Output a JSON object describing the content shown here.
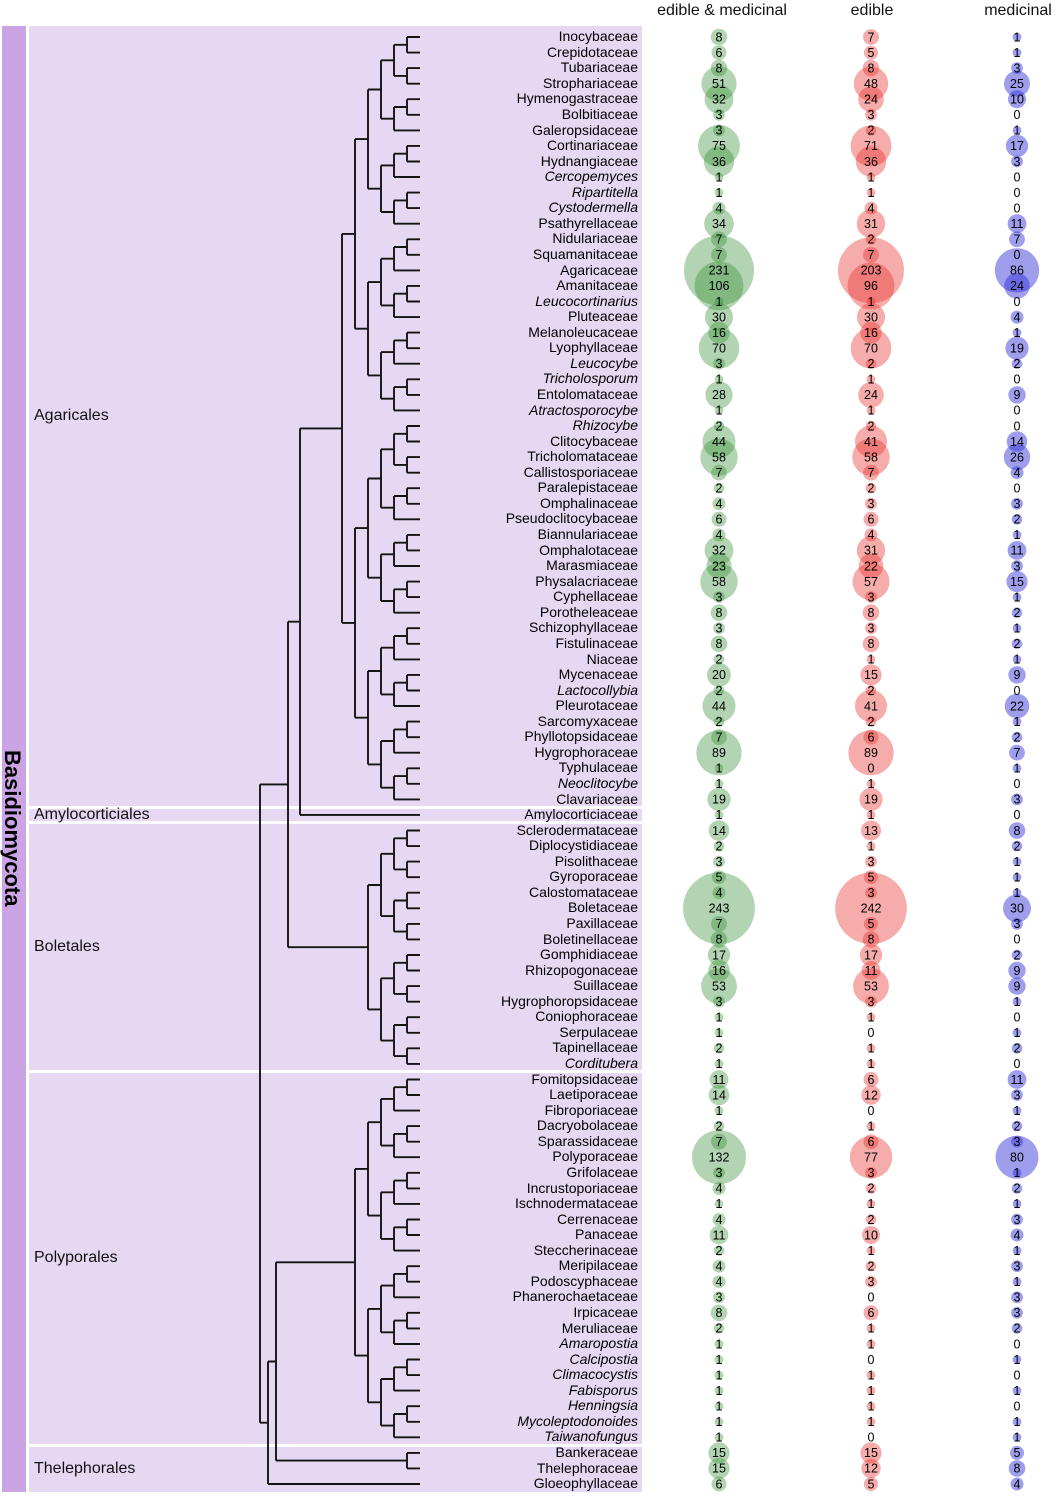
{
  "phylum": "Basidiomycota",
  "column_headers": [
    "edible & medicinal",
    "edible",
    "medicinal"
  ],
  "colors": {
    "phylum_strip": "#cba4e6",
    "order_band": "#e6d8f3",
    "tree_line": "#141414",
    "count_text": "#000000",
    "bubble_edible_medicinal": "rgba(47,138,47,0.37)",
    "bubble_edible": "rgba(233,48,42,0.40)",
    "bubble_medicinal": "rgba(40,40,215,0.45)",
    "bubble_base_hex": {
      "edible_medicinal": "#2f8a2f",
      "edible": "#e9302a",
      "medicinal": "#2828d7"
    }
  },
  "orders": [
    {
      "name": "Agaricales",
      "first": 0,
      "last": 49
    },
    {
      "name": "Amylocorticiales",
      "first": 50,
      "last": 50
    },
    {
      "name": "Boletales",
      "first": 51,
      "last": 66
    },
    {
      "name": "Polyporales",
      "first": 67,
      "last": 90
    },
    {
      "name": "Thelephorales",
      "first": 91,
      "last": 93
    }
  ],
  "chart_data": {
    "type": "bubble",
    "title": "",
    "series": [
      "edible & medicinal",
      "edible",
      "medicinal"
    ],
    "size_encoding": "circle radius proportional to sqrt(count); count of 0 shows no circle",
    "rows": [
      {
        "family": "Inocybaceae",
        "italic": false,
        "values": [
          8,
          7,
          1
        ]
      },
      {
        "family": "Crepidotaceae",
        "italic": false,
        "values": [
          6,
          5,
          1
        ]
      },
      {
        "family": "Tubariaceae",
        "italic": false,
        "values": [
          8,
          8,
          3
        ]
      },
      {
        "family": "Strophariaceae",
        "italic": false,
        "values": [
          51,
          48,
          25
        ]
      },
      {
        "family": "Hymenogastraceae",
        "italic": false,
        "values": [
          32,
          24,
          10
        ]
      },
      {
        "family": "Bolbitiaceae",
        "italic": false,
        "values": [
          3,
          3,
          0
        ]
      },
      {
        "family": "Galeropsidaceae",
        "italic": false,
        "values": [
          3,
          2,
          1
        ]
      },
      {
        "family": "Cortinariaceae",
        "italic": false,
        "values": [
          75,
          71,
          17
        ]
      },
      {
        "family": "Hydnangiaceae",
        "italic": false,
        "values": [
          36,
          36,
          3
        ]
      },
      {
        "family": "Cercopemyces",
        "italic": true,
        "values": [
          1,
          1,
          0
        ]
      },
      {
        "family": "Ripartitella",
        "italic": true,
        "values": [
          1,
          1,
          0
        ]
      },
      {
        "family": "Cystodermella",
        "italic": true,
        "values": [
          4,
          4,
          0
        ]
      },
      {
        "family": "Psathyrellaceae",
        "italic": false,
        "values": [
          34,
          31,
          11
        ]
      },
      {
        "family": "Nidulariaceae",
        "italic": false,
        "values": [
          7,
          2,
          7
        ]
      },
      {
        "family": "Squamanitaceae",
        "italic": false,
        "values": [
          7,
          7,
          0
        ]
      },
      {
        "family": "Agaricaceae",
        "italic": false,
        "values": [
          231,
          203,
          86
        ]
      },
      {
        "family": "Amanitaceae",
        "italic": false,
        "values": [
          106,
          96,
          24
        ]
      },
      {
        "family": "Leucocortinarius",
        "italic": true,
        "values": [
          1,
          1,
          0
        ]
      },
      {
        "family": "Pluteaceae",
        "italic": false,
        "values": [
          30,
          30,
          4
        ]
      },
      {
        "family": "Melanoleucaceae",
        "italic": false,
        "values": [
          16,
          16,
          1
        ]
      },
      {
        "family": "Lyophyllaceae",
        "italic": false,
        "values": [
          70,
          70,
          19
        ]
      },
      {
        "family": "Leucocybe",
        "italic": true,
        "values": [
          3,
          2,
          2
        ]
      },
      {
        "family": "Tricholosporum",
        "italic": true,
        "values": [
          1,
          1,
          0
        ]
      },
      {
        "family": "Entolomataceae",
        "italic": false,
        "values": [
          28,
          24,
          9
        ]
      },
      {
        "family": "Atractosporocybe",
        "italic": true,
        "values": [
          1,
          1,
          0
        ]
      },
      {
        "family": "Rhizocybe",
        "italic": true,
        "values": [
          2,
          2,
          0
        ]
      },
      {
        "family": "Clitocybaceae",
        "italic": false,
        "values": [
          44,
          41,
          14
        ]
      },
      {
        "family": "Tricholomataceae",
        "italic": false,
        "values": [
          58,
          58,
          26
        ]
      },
      {
        "family": "Callistosporiaceae",
        "italic": false,
        "values": [
          7,
          7,
          4
        ]
      },
      {
        "family": "Paralepistaceae",
        "italic": false,
        "values": [
          2,
          2,
          0
        ]
      },
      {
        "family": "Omphalinaceae",
        "italic": false,
        "values": [
          4,
          3,
          3
        ]
      },
      {
        "family": "Pseudoclitocybaceae",
        "italic": false,
        "values": [
          6,
          6,
          2
        ]
      },
      {
        "family": "Biannulariaceae",
        "italic": false,
        "values": [
          4,
          4,
          1
        ]
      },
      {
        "family": "Omphalotaceae",
        "italic": false,
        "values": [
          32,
          31,
          11
        ]
      },
      {
        "family": "Marasmiaceae",
        "italic": false,
        "values": [
          23,
          22,
          3
        ]
      },
      {
        "family": "Physalacriaceae",
        "italic": false,
        "values": [
          58,
          57,
          15
        ]
      },
      {
        "family": "Cyphellaceae",
        "italic": false,
        "values": [
          3,
          3,
          1
        ]
      },
      {
        "family": "Porotheleaceae",
        "italic": false,
        "values": [
          8,
          8,
          2
        ]
      },
      {
        "family": "Schizophyllaceae",
        "italic": false,
        "values": [
          3,
          3,
          1
        ]
      },
      {
        "family": "Fistulinaceae",
        "italic": false,
        "values": [
          8,
          8,
          2
        ]
      },
      {
        "family": "Niaceae",
        "italic": false,
        "values": [
          2,
          1,
          1
        ]
      },
      {
        "family": "Mycenaceae",
        "italic": false,
        "values": [
          20,
          15,
          9
        ]
      },
      {
        "family": "Lactocollybia",
        "italic": true,
        "values": [
          2,
          2,
          0
        ]
      },
      {
        "family": "Pleurotaceae",
        "italic": false,
        "values": [
          44,
          41,
          22
        ]
      },
      {
        "family": "Sarcomyxaceae",
        "italic": false,
        "values": [
          2,
          2,
          1
        ]
      },
      {
        "family": "Phyllotopsidaceae",
        "italic": false,
        "values": [
          7,
          6,
          2
        ]
      },
      {
        "family": "Hygrophoraceae",
        "italic": false,
        "values": [
          89,
          89,
          7
        ]
      },
      {
        "family": "Typhulaceae",
        "italic": false,
        "values": [
          1,
          0,
          1
        ]
      },
      {
        "family": "Neoclitocybe",
        "italic": true,
        "values": [
          1,
          1,
          0
        ]
      },
      {
        "family": "Clavariaceae",
        "italic": false,
        "values": [
          19,
          19,
          3
        ]
      },
      {
        "family": "Amylocorticiaceae",
        "italic": false,
        "values": [
          1,
          1,
          0
        ]
      },
      {
        "family": "Sclerodermataceae",
        "italic": false,
        "values": [
          14,
          13,
          8
        ]
      },
      {
        "family": "Diplocystidiaceae",
        "italic": false,
        "values": [
          2,
          1,
          2
        ]
      },
      {
        "family": "Pisolithaceae",
        "italic": false,
        "values": [
          3,
          3,
          1
        ]
      },
      {
        "family": "Gyroporaceae",
        "italic": false,
        "values": [
          5,
          5,
          1
        ]
      },
      {
        "family": "Calostomataceae",
        "italic": false,
        "values": [
          4,
          3,
          1
        ]
      },
      {
        "family": "Boletaceae",
        "italic": false,
        "values": [
          243,
          242,
          30
        ]
      },
      {
        "family": "Paxillaceae",
        "italic": false,
        "values": [
          7,
          5,
          3
        ]
      },
      {
        "family": "Boletinellaceae",
        "italic": false,
        "values": [
          8,
          8,
          0
        ]
      },
      {
        "family": "Gomphidiaceae",
        "italic": false,
        "values": [
          17,
          17,
          2
        ]
      },
      {
        "family": "Rhizopogonaceae",
        "italic": false,
        "values": [
          16,
          11,
          9
        ]
      },
      {
        "family": "Suillaceae",
        "italic": false,
        "values": [
          53,
          53,
          9
        ]
      },
      {
        "family": "Hygrophoropsidaceae",
        "italic": false,
        "values": [
          3,
          3,
          1
        ]
      },
      {
        "family": "Coniophoraceae",
        "italic": false,
        "values": [
          1,
          1,
          0
        ]
      },
      {
        "family": "Serpulaceae",
        "italic": false,
        "values": [
          1,
          0,
          1
        ]
      },
      {
        "family": "Tapinellaceae",
        "italic": false,
        "values": [
          2,
          1,
          2
        ]
      },
      {
        "family": "Corditubera",
        "italic": true,
        "values": [
          1,
          1,
          0
        ]
      },
      {
        "family": "Fomitopsidaceae",
        "italic": false,
        "values": [
          11,
          6,
          11
        ]
      },
      {
        "family": "Laetiporaceae",
        "italic": false,
        "values": [
          14,
          12,
          3
        ]
      },
      {
        "family": "Fibroporiaceae",
        "italic": false,
        "values": [
          1,
          0,
          1
        ]
      },
      {
        "family": "Dacryobolaceae",
        "italic": false,
        "values": [
          2,
          1,
          2
        ]
      },
      {
        "family": "Sparassidaceae",
        "italic": false,
        "values": [
          7,
          6,
          3
        ]
      },
      {
        "family": "Polyporaceae",
        "italic": false,
        "values": [
          132,
          77,
          80
        ]
      },
      {
        "family": "Grifolaceae",
        "italic": false,
        "values": [
          3,
          3,
          1
        ]
      },
      {
        "family": "Incrustoporiaceae",
        "italic": false,
        "values": [
          4,
          2,
          2
        ]
      },
      {
        "family": "Ischnodermataceae",
        "italic": false,
        "values": [
          1,
          1,
          1
        ]
      },
      {
        "family": "Cerrenaceae",
        "italic": false,
        "values": [
          4,
          2,
          3
        ]
      },
      {
        "family": "Panaceae",
        "italic": false,
        "values": [
          11,
          10,
          4
        ]
      },
      {
        "family": "Steccherinaceae",
        "italic": false,
        "values": [
          2,
          1,
          1
        ]
      },
      {
        "family": "Meripilaceae",
        "italic": false,
        "values": [
          4,
          2,
          3
        ]
      },
      {
        "family": "Podoscyphaceae",
        "italic": false,
        "values": [
          4,
          3,
          1
        ]
      },
      {
        "family": "Phanerochaetaceae",
        "italic": false,
        "values": [
          3,
          0,
          3
        ]
      },
      {
        "family": "Irpicaceae",
        "italic": false,
        "values": [
          8,
          6,
          3
        ]
      },
      {
        "family": "Meruliaceae",
        "italic": false,
        "values": [
          2,
          1,
          2
        ]
      },
      {
        "family": "Amaropostia",
        "italic": true,
        "values": [
          1,
          1,
          0
        ]
      },
      {
        "family": "Calcipostia",
        "italic": true,
        "values": [
          1,
          0,
          1
        ]
      },
      {
        "family": "Climacocystis",
        "italic": true,
        "values": [
          1,
          1,
          0
        ]
      },
      {
        "family": "Fabisporus",
        "italic": true,
        "values": [
          1,
          1,
          1
        ]
      },
      {
        "family": "Henningsia",
        "italic": true,
        "values": [
          1,
          1,
          0
        ]
      },
      {
        "family": "Mycoleptodonoides",
        "italic": true,
        "values": [
          1,
          1,
          1
        ]
      },
      {
        "family": "Taiwanofungus",
        "italic": true,
        "values": [
          1,
          0,
          1
        ]
      },
      {
        "family": "Bankeraceae",
        "italic": false,
        "values": [
          15,
          15,
          5
        ]
      },
      {
        "family": "Thelephoraceae",
        "italic": false,
        "values": [
          15,
          12,
          8
        ]
      },
      {
        "family": "Gloeophyllaceae",
        "italic": false,
        "values": [
          6,
          5,
          4
        ]
      }
    ]
  }
}
